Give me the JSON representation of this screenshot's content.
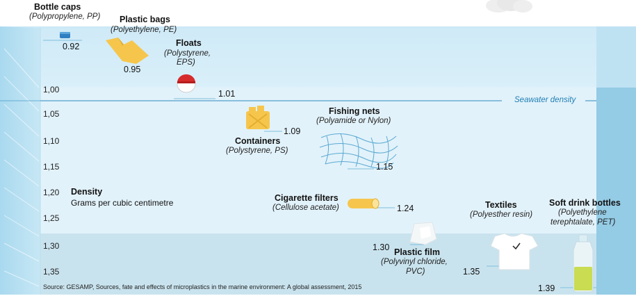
{
  "colors": {
    "water_top": "#e2f3fb",
    "water_mid": "#cdeaf7",
    "water_deep": "#b9dcea",
    "water_right_wall": "#8fc8e3",
    "water_left_wall": "#9dd3ec",
    "seawater_line": "#2e8bc0",
    "leader_line": "#7fbfdc"
  },
  "y_axis": {
    "title": "Density",
    "subtitle": "Grams per cubic centimetre",
    "ticks": [
      "1,00",
      "1,05",
      "1,10",
      "1,15",
      "1,20",
      "1,25",
      "1,30",
      "1,35"
    ]
  },
  "seawater": {
    "label": "Seawater density",
    "value": 1.025
  },
  "items": [
    {
      "key": "bottle_caps",
      "name": "Bottle caps",
      "material": "(Polypropylene, PP)",
      "density": 0.92,
      "value_label": "0.92",
      "icon": "bottle-cap-icon"
    },
    {
      "key": "plastic_bags",
      "name": "Plastic bags",
      "material": "(Polyethylene, PE)",
      "density": 0.95,
      "value_label": "0.95",
      "icon": "plastic-bag-icon"
    },
    {
      "key": "floats",
      "name": "Floats",
      "material_line1": "(Polystyrene,",
      "material_line2": "EPS)",
      "density": 1.01,
      "value_label": "1.01",
      "icon": "float-icon"
    },
    {
      "key": "containers",
      "name": "Containers",
      "material": "(Polystyrene, PS)",
      "density": 1.09,
      "value_label": "1.09",
      "icon": "jerrycan-icon"
    },
    {
      "key": "fishing_nets",
      "name": "Fishing nets",
      "material": "(Polyamide or Nylon)",
      "density": 1.15,
      "value_label": "1.15",
      "icon": "fishing-net-icon"
    },
    {
      "key": "cigarette_filters",
      "name": "Cigarette filters",
      "material": "(Cellulose acetate)",
      "density": 1.24,
      "value_label": "1.24",
      "icon": "cigarette-filter-icon"
    },
    {
      "key": "plastic_film",
      "name": "Plastic film",
      "material_line1": "(Polyvinyl chloride,",
      "material_line2": "PVC)",
      "density": 1.3,
      "value_label": "1.30",
      "icon": "plastic-film-icon"
    },
    {
      "key": "textiles",
      "name": "Textiles",
      "material": "(Polyesther resin)",
      "density": 1.35,
      "value_label": "1.35",
      "icon": "t-shirt-icon"
    },
    {
      "key": "soft_drink_bottles",
      "name": "Soft drink bottles",
      "material_line1": "(Polyethylene",
      "material_line2": "terephtalate, PET)",
      "density": 1.39,
      "value_label": "1.39",
      "icon": "pet-bottle-icon"
    }
  ],
  "source": "Source: GESAMP, Sources, fate and effects of microplastics in the marine environment: A global assessment, 2015"
}
